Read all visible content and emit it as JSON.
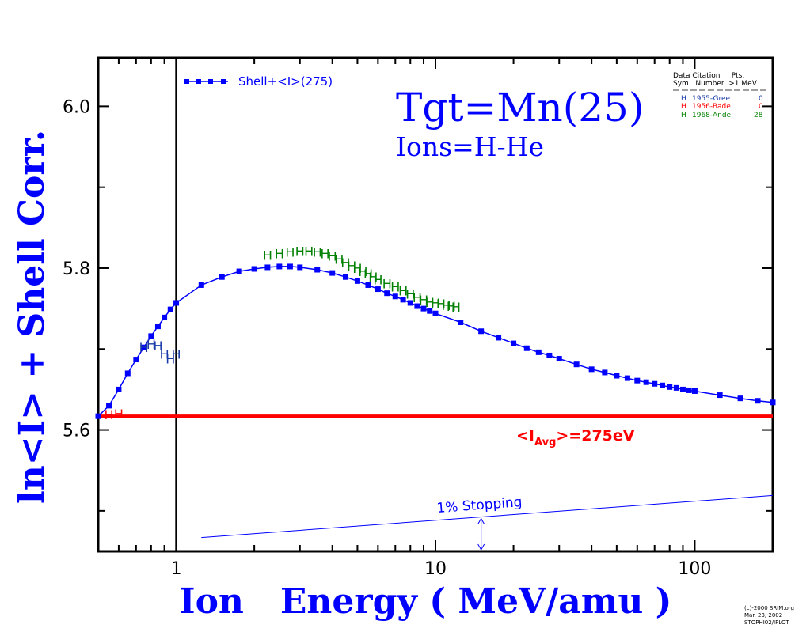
{
  "chart_data": {
    "type": "line",
    "x_scale": "log",
    "xlim": [
      0.5,
      200
    ],
    "ylim": [
      5.45,
      6.06
    ],
    "xticks": [
      1,
      10,
      100
    ],
    "xtick_labels": [
      "1",
      "10",
      "100"
    ],
    "yticks": [
      5.6,
      5.8,
      6.0
    ],
    "ytick_labels": [
      "5.6",
      "5.8",
      "6.0"
    ],
    "yticks_minor": [
      5.5,
      5.7,
      5.9
    ],
    "xlabel": "Ion   Energy ( MeV/amu )",
    "ylabel": "ln<I> + Shell Corr.",
    "title": "Tgt=Mn(25)",
    "subtitle": "Ions=H-He",
    "legend_position": "top-left",
    "series": [
      {
        "name": "Shell+<I>(275)",
        "color": "#0000ff",
        "x": [
          0.5,
          0.55,
          0.6,
          0.65,
          0.7,
          0.75,
          0.8,
          0.85,
          0.9,
          0.95,
          1.0,
          1.25,
          1.5,
          1.75,
          2.0,
          2.25,
          2.5,
          2.75,
          3.0,
          3.5,
          4.0,
          4.5,
          5.0,
          5.5,
          6.0,
          6.5,
          7.0,
          7.5,
          8.0,
          8.5,
          9.0,
          9.5,
          10,
          12.5,
          15,
          17.5,
          20,
          22.5,
          25,
          27.5,
          30,
          35,
          40,
          45,
          50,
          55,
          60,
          65,
          70,
          75,
          80,
          85,
          90,
          95,
          100,
          125,
          150,
          175,
          200
        ],
        "y": [
          5.617,
          5.63,
          5.65,
          5.67,
          5.687,
          5.702,
          5.716,
          5.728,
          5.739,
          5.749,
          5.757,
          5.779,
          5.789,
          5.796,
          5.799,
          5.801,
          5.802,
          5.802,
          5.801,
          5.798,
          5.794,
          5.789,
          5.784,
          5.779,
          5.774,
          5.769,
          5.765,
          5.761,
          5.757,
          5.753,
          5.75,
          5.747,
          5.744,
          5.733,
          5.722,
          5.714,
          5.707,
          5.701,
          5.696,
          5.692,
          5.688,
          5.681,
          5.675,
          5.671,
          5.667,
          5.664,
          5.661,
          5.659,
          5.657,
          5.655,
          5.653,
          5.652,
          5.65,
          5.649,
          5.648,
          5.643,
          5.639,
          5.636,
          5.634
        ]
      },
      {
        "name": "<I_Avg>=275eV",
        "color": "#ff0000",
        "x": [
          0.5,
          200
        ],
        "y": [
          5.617,
          5.617
        ]
      }
    ],
    "data_points": [
      {
        "sym": "H",
        "citation": "1955-Gree",
        "pts": "0",
        "color": "#1a3aa8",
        "x": [
          0.75,
          0.8,
          0.85,
          0.9,
          0.95,
          1.0
        ],
        "y": [
          5.702,
          5.706,
          5.704,
          5.694,
          5.688,
          5.694
        ]
      },
      {
        "sym": "H",
        "citation": "1956-Bade",
        "pts": "0",
        "color": "#ff0000",
        "x": [
          0.55,
          0.6
        ],
        "y": [
          5.619,
          5.62
        ]
      },
      {
        "sym": "H",
        "citation": "1968-Ande",
        "pts": "28",
        "color": "#008000",
        "x": [
          2.25,
          2.5,
          2.75,
          3.0,
          3.25,
          3.5,
          3.75,
          4.0,
          4.25,
          4.5,
          4.75,
          5.0,
          5.25,
          5.5,
          5.75,
          6.0,
          6.5,
          7.0,
          7.5,
          8.0,
          8.5,
          9.0,
          9.5,
          10.0,
          10.5,
          11.0,
          11.5,
          12.0
        ],
        "y": [
          5.816,
          5.818,
          5.82,
          5.821,
          5.821,
          5.82,
          5.818,
          5.815,
          5.811,
          5.807,
          5.803,
          5.8,
          5.796,
          5.793,
          5.789,
          5.786,
          5.781,
          5.777,
          5.772,
          5.768,
          5.764,
          5.761,
          5.758,
          5.757,
          5.756,
          5.754,
          5.753,
          5.752
        ]
      }
    ],
    "stopping_line": {
      "label": "1% Stopping",
      "x": [
        1.25,
        200
      ],
      "y": [
        5.467,
        5.519
      ],
      "arrow_x": 15
    },
    "ref_label": "<I",
    "ref_label_sub": "Avg",
    "ref_label_tail": ">=275eV",
    "data_table": {
      "header_line1": "Data Citation     Pts.",
      "header_line2": "Sym   Number  >1 MeV"
    }
  },
  "copyright": {
    "line1": "(c)-2000 SRIM.org",
    "line2": "Mar. 23, 2002",
    "line3": "STOPHI02/IPLOT"
  }
}
